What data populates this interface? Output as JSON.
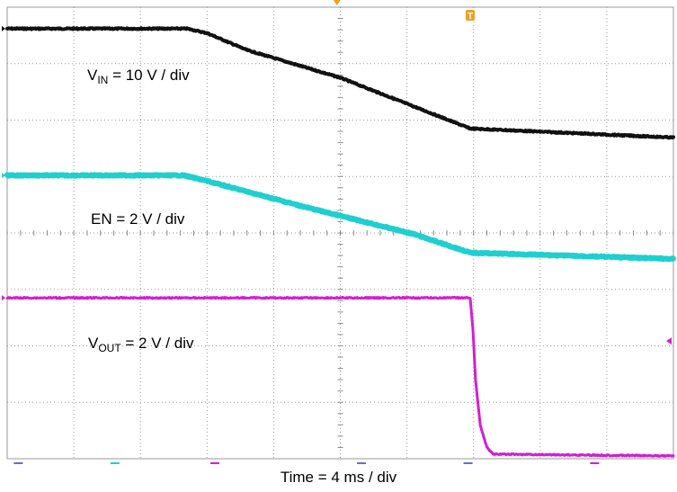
{
  "chart_data": {
    "type": "line",
    "xlabel": "Time = 4 ms / div",
    "grid": true,
    "divisions": {
      "x": 10,
      "y": 8
    },
    "x_unit": "div",
    "y_unit": "div",
    "series": [
      {
        "key": "vin",
        "label_prefix": "V",
        "label_sub": "IN",
        "label_suffix": " = 10 V / div",
        "color": "#111111",
        "thickness": "thin",
        "points": [
          [
            0,
            7.62
          ],
          [
            2.7,
            7.62
          ],
          [
            3.0,
            7.54
          ],
          [
            3.6,
            7.24
          ],
          [
            5.0,
            6.75
          ],
          [
            6.95,
            5.85
          ],
          [
            10,
            5.69
          ]
        ]
      },
      {
        "key": "en",
        "label_text": "EN = 2 V / div",
        "color": "#1fcfcf",
        "thickness": "thick",
        "points": [
          [
            0,
            5.02
          ],
          [
            2.65,
            5.02
          ],
          [
            3.0,
            4.92
          ],
          [
            4.5,
            4.45
          ],
          [
            6.1,
            3.98
          ],
          [
            6.95,
            3.65
          ],
          [
            10,
            3.54
          ]
        ]
      },
      {
        "key": "vout",
        "label_prefix": "V",
        "label_sub": "OUT",
        "label_suffix": " = 2 V / div",
        "color": "#d21fd2",
        "thickness": "medium",
        "points": [
          [
            0,
            2.85
          ],
          [
            6.95,
            2.85
          ],
          [
            6.99,
            2.3
          ],
          [
            7.03,
            1.4
          ],
          [
            7.1,
            0.6
          ],
          [
            7.2,
            0.2
          ],
          [
            7.3,
            0.08
          ],
          [
            10,
            0.05
          ]
        ]
      }
    ]
  },
  "markers": {
    "trigger_symbol": "T",
    "trigger_color": "#f0a020"
  }
}
